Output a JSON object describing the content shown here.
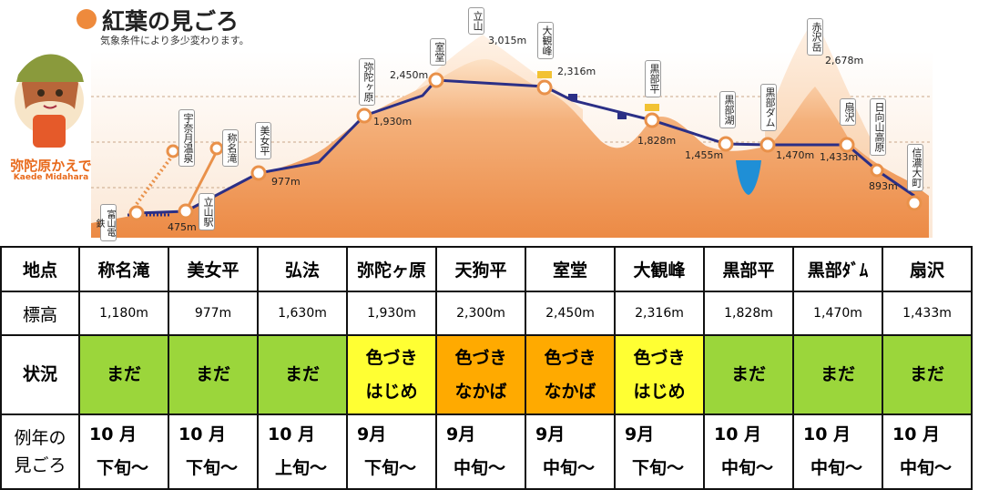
{
  "header": {
    "title": "紅葉の見ごろ",
    "subtitle": "気象条件により多少変わります。"
  },
  "mascot": {
    "name": "弥陀原かえで",
    "romaji": "Kaede Midahara"
  },
  "colors": {
    "accent": "#ee8a3c",
    "route": "#2b2f86",
    "madaGreen": "#9bd63b",
    "beginYellow": "#ffff33",
    "midOrange": "#ffaa00"
  },
  "map": {
    "stations": {
      "toyama_cable": "富山電鉄",
      "tateyama_sta": "立山駅",
      "unazuki": "宇奈月温泉",
      "shomyo": "称名滝",
      "bijodaira": "美女平",
      "midagahara": "弥陀ヶ原",
      "murodo": "室堂",
      "tateyama": "立山",
      "daikanbo": "大観峰",
      "kurobedaira": "黒部平",
      "kurobeko": "黒部湖",
      "kurobedam": "黒部ダム",
      "akazawadake": "赤沢岳",
      "ogisawa": "扇沢",
      "hinatayama": "日向山高原",
      "shinanoomachi": "信濃大町"
    },
    "elevations": {
      "e475": "475m",
      "e977": "977m",
      "e1930": "1,930m",
      "e2450": "2,450m",
      "e3015": "3,015m",
      "e2316": "2,316m",
      "e1828": "1,828m",
      "e1455": "1,455m",
      "e1470": "1,470m",
      "e1433": "1,433m",
      "e2678": "2,678m",
      "e893": "893m"
    }
  },
  "table": {
    "row_labels": {
      "place": "地点",
      "altitude": "標高",
      "status": "状況",
      "typical_1": "例年の",
      "typical_2": "見ごろ"
    },
    "columns": [
      {
        "place": "称名滝",
        "alt": "1,180m",
        "status1": "まだ",
        "status2": "",
        "color": "green",
        "m": "10 月",
        "p": "下旬～"
      },
      {
        "place": "美女平",
        "alt": "977m",
        "status1": "まだ",
        "status2": "",
        "color": "green",
        "m": "10 月",
        "p": "下旬～"
      },
      {
        "place": "弘法",
        "alt": "1,630m",
        "status1": "まだ",
        "status2": "",
        "color": "green",
        "m": "10 月",
        "p": "上旬～"
      },
      {
        "place": "弥陀ヶ原",
        "alt": "1,930m",
        "status1": "色づき",
        "status2": "はじめ",
        "color": "yellow",
        "m": "9月",
        "p": "下旬～"
      },
      {
        "place": "天狗平",
        "alt": "2,300m",
        "status1": "色づき",
        "status2": "なかば",
        "color": "orange",
        "m": "9月",
        "p": "中旬～"
      },
      {
        "place": "室堂",
        "alt": "2,450m",
        "status1": "色づき",
        "status2": "なかば",
        "color": "orange",
        "m": "9月",
        "p": "中旬～"
      },
      {
        "place": "大観峰",
        "alt": "2,316m",
        "status1": "色づき",
        "status2": "はじめ",
        "color": "yellow",
        "m": "9月",
        "p": "下旬～"
      },
      {
        "place": "黒部平",
        "alt": "1,828m",
        "status1": "まだ",
        "status2": "",
        "color": "green",
        "m": "10 月",
        "p": "中旬～"
      },
      {
        "place": "黒部ﾀﾞﾑ",
        "alt": "1,470m",
        "status1": "まだ",
        "status2": "",
        "color": "green",
        "m": "10 月",
        "p": "中旬～"
      },
      {
        "place": "扇沢",
        "alt": "1,433m",
        "status1": "まだ",
        "status2": "",
        "color": "green",
        "m": "10 月",
        "p": "中旬～"
      }
    ]
  }
}
